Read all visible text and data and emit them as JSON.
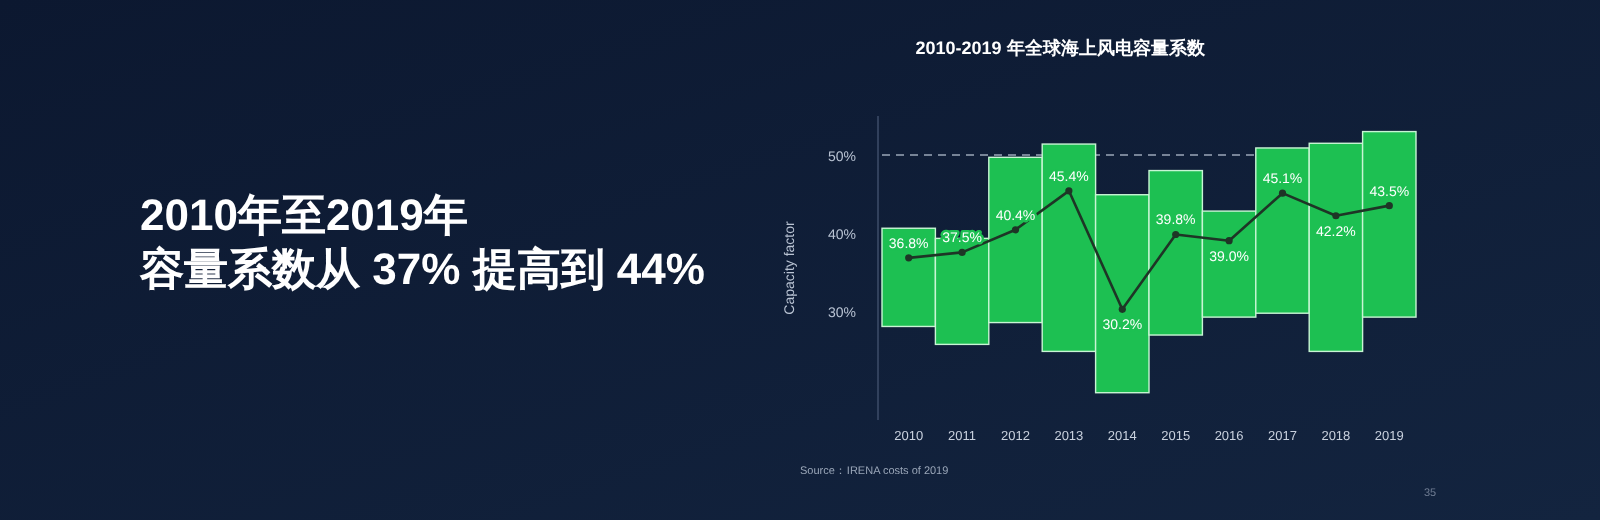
{
  "chart_data": {
    "type": "bar",
    "title": "2010-2019 年全球海上风电容量系数",
    "ylabel": "Capacity factor",
    "categories": [
      "2010",
      "2011",
      "2012",
      "2013",
      "2014",
      "2015",
      "2016",
      "2017",
      "2018",
      "2019"
    ],
    "series": [
      {
        "color": "#1dc052",
        "base": [
          28.0,
          25.7,
          28.5,
          24.8,
          19.5,
          26.9,
          29.2,
          29.7,
          24.8,
          29.2
        ],
        "values": [
          12.6,
          13.6,
          21.2,
          26.6,
          25.4,
          21.1,
          13.6,
          21.2,
          26.7,
          23.8
        ]
      },
      {
        "type": "line",
        "color": "#1e3526",
        "marker": "circle",
        "values": [
          36.8,
          37.5,
          40.4,
          45.4,
          30.2,
          39.8,
          39.0,
          45.1,
          42.2,
          43.5
        ],
        "value_labels": [
          "36.8%",
          "37.5%",
          "40.4%",
          "45.4%",
          "30.2%",
          "39.8%",
          "39.0%",
          "45.1%",
          "42.2%",
          "43.5%"
        ]
      }
    ],
    "ylim": [
      16,
      55
    ],
    "yticks": [
      {
        "value": 30,
        "label": "30%"
      },
      {
        "value": 40,
        "label": "40%"
      },
      {
        "value": 50,
        "label": "50%"
      }
    ],
    "ref_lines": [
      {
        "axis": "y",
        "value": 50,
        "line_style": "dashed",
        "color": "#9aa6b8"
      }
    ],
    "grid": false,
    "annotations": [
      "2010年至2019年",
      "容量系数从 37% 提高到 44%",
      "Source：IRENA costs of 2019",
      "35"
    ]
  }
}
